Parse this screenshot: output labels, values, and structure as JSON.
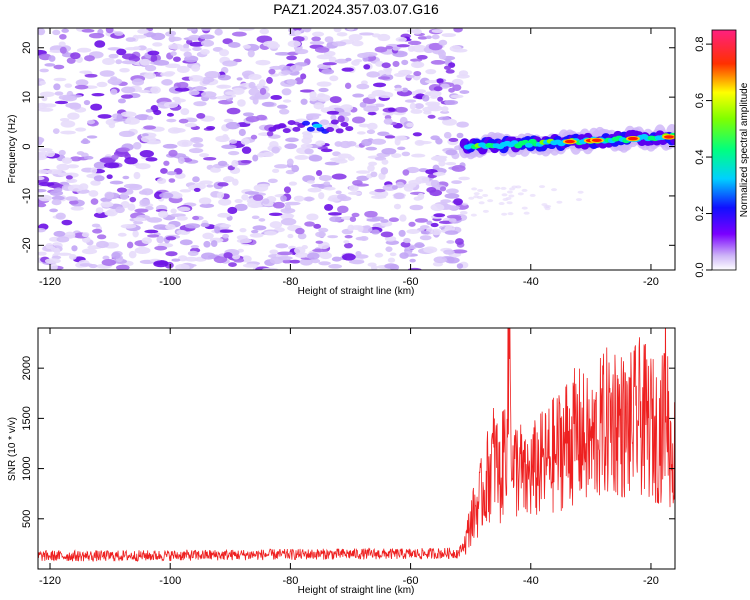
{
  "title": "PAZ1.2024.357.03.07.G16",
  "colors": {
    "noise": "#a868ee",
    "snr_line": "#ee2020",
    "background": "#ffffff"
  },
  "chart_data": [
    {
      "type": "heatmap",
      "xlabel": "Height of straight line (km)",
      "ylabel": "Frequency (Hz)",
      "xlim": [
        -122,
        -16
      ],
      "ylim": [
        -25,
        24
      ],
      "x_ticks": [
        -120,
        -100,
        -80,
        -60,
        -40,
        -20
      ],
      "y_ticks": [
        -20,
        -10,
        0,
        10,
        20
      ],
      "colorbar": {
        "label": "Normalized spectral amplitude",
        "range": [
          0,
          0.85
        ],
        "ticks": [
          0.0,
          0.2,
          0.4,
          0.6,
          0.8
        ],
        "colormap": "hsv-reversed (purple-blue-cyan-green-yellow-red-magenta)"
      },
      "features": [
        {
          "x_start": -122,
          "x_end": -51,
          "freq_range": [
            -25,
            24
          ],
          "amplitude": [
            0.0,
            0.1
          ],
          "description": "scattered noise"
        },
        {
          "x_start": -83,
          "x_end": -70,
          "freq_center": 4,
          "amplitude": 0.15
        },
        {
          "x_start": -51,
          "x_end": -16,
          "freq_start": 0,
          "freq_end": 2,
          "amplitude_peak": 0.85
        }
      ]
    },
    {
      "type": "line",
      "xlabel": "Height of straight line (km)",
      "ylabel": "SNR (10 * v/v)",
      "xlim": [
        -122,
        -16
      ],
      "ylim": [
        0,
        2400
      ],
      "x_ticks": [
        -120,
        -100,
        -80,
        -60,
        -40,
        -20
      ],
      "y_ticks": [
        500,
        1000,
        1500,
        2000
      ],
      "series": [
        {
          "x": [
            -122,
            -110,
            -100,
            -90,
            -80,
            -70,
            -60,
            -52,
            -51,
            -50,
            -49,
            -48,
            -47,
            -46,
            -45,
            -44,
            -43.5,
            -43,
            -42,
            -41,
            -40,
            -38,
            -36,
            -34,
            -32,
            -30,
            -28,
            -26,
            -24,
            -22,
            -20,
            -19,
            -18,
            -17.5,
            -17,
            -16
          ],
          "y": [
            130,
            130,
            135,
            140,
            145,
            150,
            150,
            160,
            250,
            500,
            650,
            800,
            1000,
            1200,
            900,
            1500,
            2400,
            1000,
            1100,
            900,
            1000,
            1100,
            1200,
            1350,
            1400,
            1300,
            1500,
            1600,
            1450,
            1600,
            1500,
            1400,
            1500,
            2100,
            1300,
            1200
          ]
        }
      ]
    }
  ]
}
